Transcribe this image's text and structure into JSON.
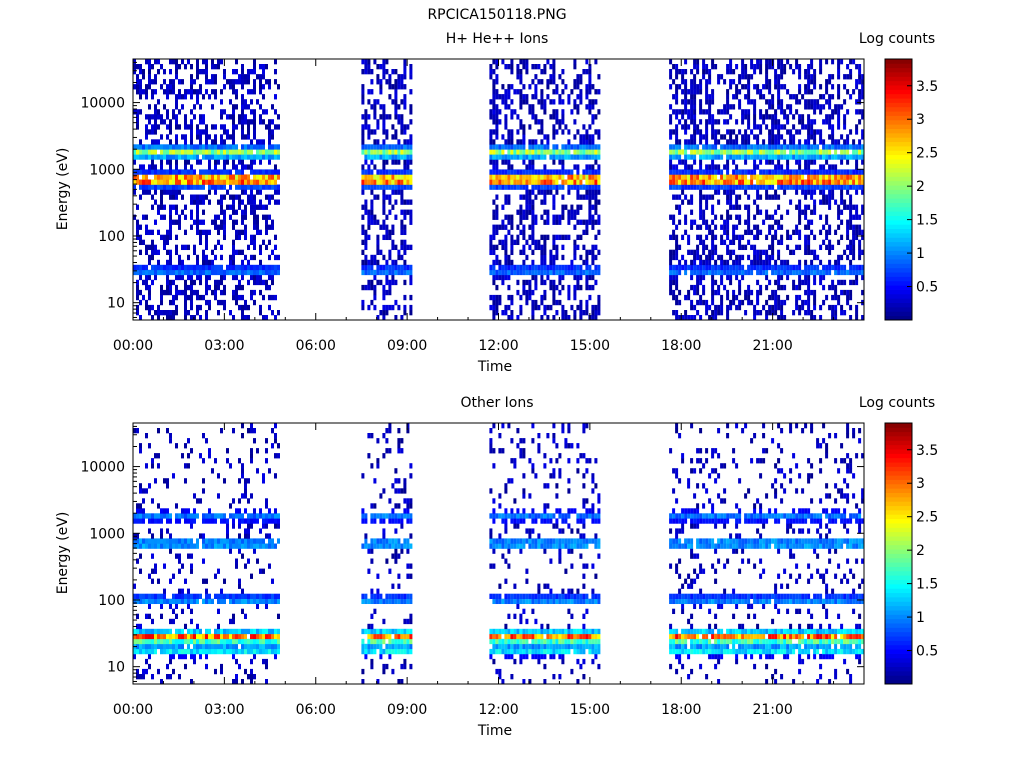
{
  "figure": {
    "title": "RPCICA150118.PNG"
  },
  "chart_data": [
    {
      "type": "heatmap",
      "title": "H+ He++ Ions",
      "xlabel": "Time",
      "ylabel": "Energy (eV)",
      "x_ticks": [
        "00:00",
        "03:00",
        "06:00",
        "09:00",
        "12:00",
        "15:00",
        "18:00",
        "21:00"
      ],
      "x_range_hours": [
        0,
        24
      ],
      "y_scale": "log",
      "y_ticks": [
        "10",
        "100",
        "1000",
        "10000"
      ],
      "y_range": [
        5.5,
        45000
      ],
      "colorbar": {
        "label": "Log counts",
        "ticks": [
          "0.5",
          "1",
          "1.5",
          "2",
          "2.5",
          "3",
          "3.5"
        ],
        "range": [
          0,
          3.9
        ]
      },
      "data_intervals_hours": [
        [
          0.0,
          4.8
        ],
        [
          7.5,
          9.1
        ],
        [
          11.7,
          15.3
        ],
        [
          17.6,
          24.0
        ]
      ],
      "bands": [
        {
          "energy_eV": 700,
          "log_counts": 3.6,
          "comment_free": true
        },
        {
          "energy_eV": 1800,
          "log_counts": 2.2
        },
        {
          "energy_eV": 30,
          "log_counts": 1.0
        }
      ],
      "background": {
        "color": "#0a1ab4",
        "log_counts": 0.3
      }
    },
    {
      "type": "heatmap",
      "title": "Other Ions",
      "xlabel": "Time",
      "ylabel": "Energy (eV)",
      "x_ticks": [
        "00:00",
        "03:00",
        "06:00",
        "09:00",
        "12:00",
        "15:00",
        "18:00",
        "21:00"
      ],
      "x_range_hours": [
        0,
        24
      ],
      "y_scale": "log",
      "y_ticks": [
        "10",
        "100",
        "1000",
        "10000"
      ],
      "y_range": [
        5.5,
        45000
      ],
      "colorbar": {
        "label": "Log counts",
        "ticks": [
          "0.5",
          "1",
          "1.5",
          "2",
          "2.5",
          "3",
          "3.5"
        ],
        "range": [
          0,
          3.9
        ]
      },
      "data_intervals_hours": [
        [
          0.0,
          4.8
        ],
        [
          7.5,
          9.1
        ],
        [
          11.7,
          15.3
        ],
        [
          17.6,
          24.0
        ]
      ],
      "bands": [
        {
          "energy_eV": 28,
          "log_counts": 3.2
        },
        {
          "energy_eV": 18,
          "log_counts": 1.6
        },
        {
          "energy_eV": 100,
          "log_counts": 1.1
        },
        {
          "energy_eV": 700,
          "log_counts": 1.3
        },
        {
          "energy_eV": 1800,
          "log_counts": 1.0
        }
      ],
      "background": {
        "color": "#0a1ab4",
        "log_counts": 0.3
      }
    }
  ]
}
